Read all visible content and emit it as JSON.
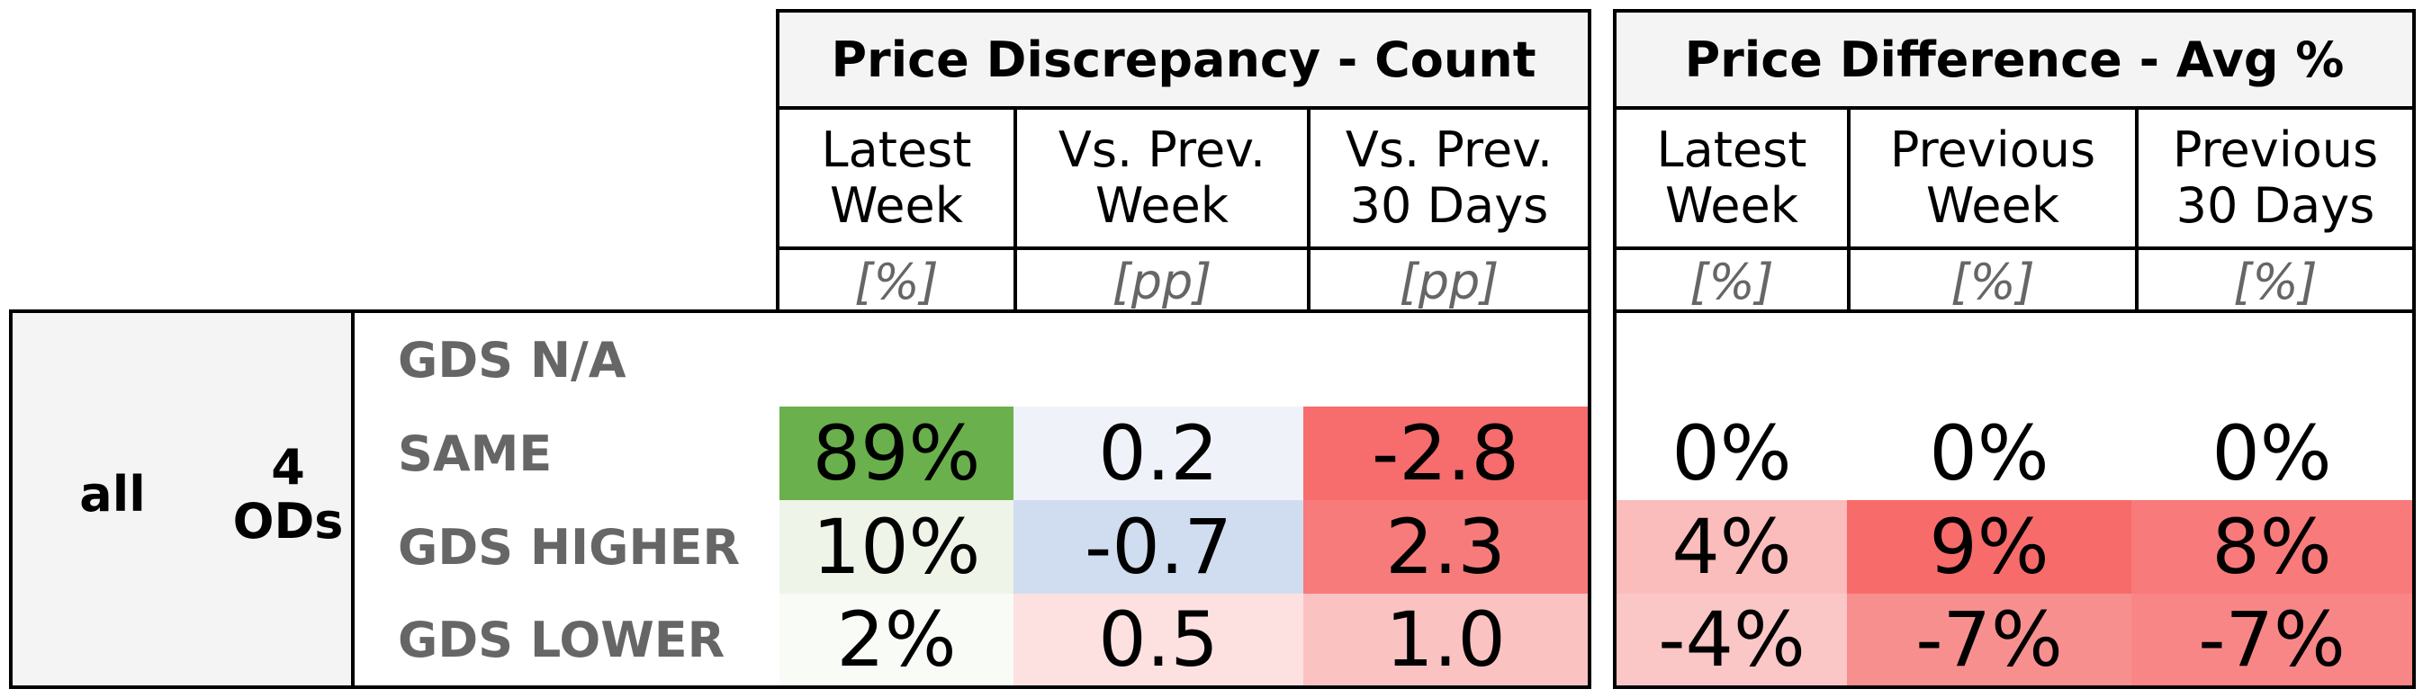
{
  "chart_data": {
    "type": "table",
    "group_label": "all",
    "subgroup_label": "4\nODs",
    "rows": [
      "GDS N/A",
      "SAME",
      "GDS HIGHER",
      "GDS LOWER"
    ],
    "tables": [
      {
        "title": "Price Discrepancy - Count",
        "columns": [
          {
            "label": "Latest\nWeek",
            "unit": "[%]"
          },
          {
            "label": "Vs. Prev.\nWeek",
            "unit": "[pp]"
          },
          {
            "label": "Vs. Prev.\n30 Days",
            "unit": "[pp]"
          }
        ],
        "cells": [
          [
            null,
            null,
            null
          ],
          [
            "89%",
            "0.2",
            "-2.8"
          ],
          [
            "10%",
            "-0.7",
            "2.3"
          ],
          [
            "2%",
            "0.5",
            "1.0"
          ]
        ],
        "colors": [
          [
            "#ffffff",
            "#ffffff",
            "#ffffff"
          ],
          [
            "#6ab04c",
            "#eff3f9",
            "#f76c6c"
          ],
          [
            "#eef4e8",
            "#d0ddf0",
            "#f87b7b"
          ],
          [
            "#f9fbf7",
            "#fde1e1",
            "#fbc2c2"
          ]
        ]
      },
      {
        "title": "Price Difference - Avg %",
        "columns": [
          {
            "label": "Latest\nWeek",
            "unit": "[%]"
          },
          {
            "label": "Previous\nWeek",
            "unit": "[%]"
          },
          {
            "label": "Previous\n30 Days",
            "unit": "[%]"
          }
        ],
        "cells": [
          [
            null,
            null,
            null
          ],
          [
            "0%",
            "0%",
            "0%"
          ],
          [
            "4%",
            "9%",
            "8%"
          ],
          [
            "-4%",
            "-7%",
            "-7%"
          ]
        ],
        "colors": [
          [
            "#ffffff",
            "#ffffff",
            "#ffffff"
          ],
          [
            "#ffffff",
            "#ffffff",
            "#ffffff"
          ],
          [
            "#fbbcbc",
            "#f76b6b",
            "#f87a7a"
          ],
          [
            "#fbc6c6",
            "#f88f8f",
            "#f88686"
          ]
        ]
      }
    ]
  }
}
